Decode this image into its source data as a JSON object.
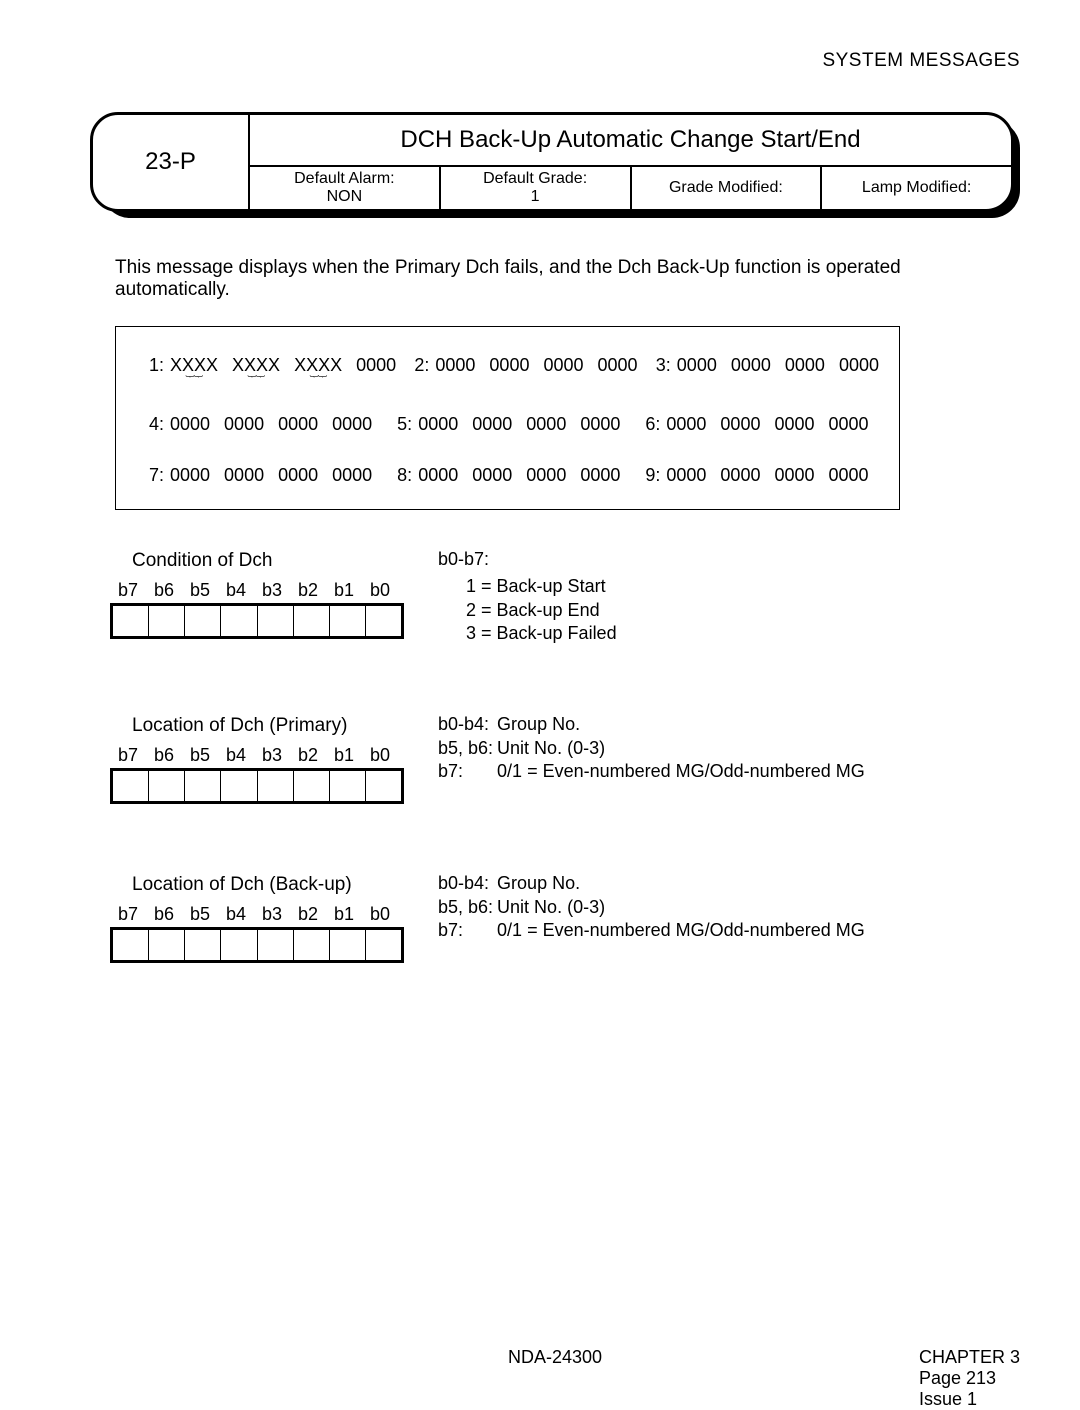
{
  "header": {
    "title": "SYSTEM MESSAGES"
  },
  "card": {
    "code": "23-P",
    "title": "DCH Back-Up Automatic Change Start/End",
    "cells": [
      {
        "label": "Default Alarm:",
        "value": "NON"
      },
      {
        "label": "Default Grade:",
        "value": "1"
      },
      {
        "label": "Grade Modified:",
        "value": ""
      },
      {
        "label": "Lamp Modified:",
        "value": ""
      }
    ]
  },
  "description": "This message displays when the Primary Dch fails, and the Dch Back-Up function is operated automatically.",
  "dump": {
    "rows": [
      [
        {
          "n": "1:",
          "words": [
            "XXXX",
            "XXXX",
            "XXXX",
            "0000"
          ],
          "curly": [
            true,
            true,
            true,
            false
          ]
        },
        {
          "n": "2:",
          "words": [
            "0000",
            "0000",
            "0000",
            "0000"
          ],
          "curly": [
            false,
            false,
            false,
            false
          ]
        },
        {
          "n": "3:",
          "words": [
            "0000",
            "0000",
            "0000",
            "0000"
          ],
          "curly": [
            false,
            false,
            false,
            false
          ]
        }
      ],
      [
        {
          "n": "4:",
          "words": [
            "0000",
            "0000",
            "0000",
            "0000"
          ],
          "curly": [
            false,
            false,
            false,
            false
          ]
        },
        {
          "n": "5:",
          "words": [
            "0000",
            "0000",
            "0000",
            "0000"
          ],
          "curly": [
            false,
            false,
            false,
            false
          ]
        },
        {
          "n": "6:",
          "words": [
            "0000",
            "0000",
            "0000",
            "0000"
          ],
          "curly": [
            false,
            false,
            false,
            false
          ]
        }
      ],
      [
        {
          "n": "7:",
          "words": [
            "0000",
            "0000",
            "0000",
            "0000"
          ],
          "curly": [
            false,
            false,
            false,
            false
          ]
        },
        {
          "n": "8:",
          "words": [
            "0000",
            "0000",
            "0000",
            "0000"
          ],
          "curly": [
            false,
            false,
            false,
            false
          ]
        },
        {
          "n": "9:",
          "words": [
            "0000",
            "0000",
            "0000",
            "0000"
          ],
          "curly": [
            false,
            false,
            false,
            false
          ]
        }
      ]
    ]
  },
  "bit_labels": [
    "b7",
    "b6",
    "b5",
    "b4",
    "b3",
    "b2",
    "b1",
    "b0"
  ],
  "block1": {
    "title": "Condition of Dch",
    "info_head": "b0-b7:",
    "lines": [
      "1 = Back-up Start",
      "2 = Back-up End",
      "3 = Back-up Failed"
    ]
  },
  "block2": {
    "title": "Location of Dch (Primary)",
    "rows": [
      {
        "k": "b0-b4:",
        "v": "Group No."
      },
      {
        "k": "b5, b6:",
        "v": "Unit No. (0-3)"
      },
      {
        "k": "b7:",
        "v": "0/1 = Even-numbered MG/Odd-numbered MG"
      }
    ]
  },
  "block3": {
    "title": "Location of Dch (Back-up)",
    "rows": [
      {
        "k": "b0-b4:",
        "v": "Group No."
      },
      {
        "k": "b5, b6:",
        "v": "Unit No. (0-3)"
      },
      {
        "k": "b7:",
        "v": "0/1 = Even-numbered MG/Odd-numbered MG"
      }
    ]
  },
  "footer": {
    "center": "NDA-24300",
    "chapter": "CHAPTER 3",
    "page": "Page 213",
    "issue": "Issue 1"
  }
}
